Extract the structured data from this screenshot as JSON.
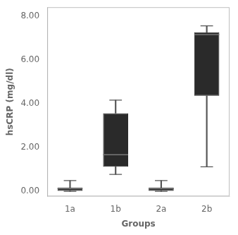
{
  "chart_data": {
    "type": "box",
    "categories": [
      "1a",
      "1b",
      "2a",
      "2b"
    ],
    "boxes": [
      {
        "whisker_low": -0.02,
        "q1": 0.0,
        "median": 0.1,
        "q3": 0.155,
        "whisker_high": 0.47
      },
      {
        "whisker_low": 0.75,
        "q1": 1.1,
        "median": 1.65,
        "q3": 3.55,
        "whisker_high": 4.15
      },
      {
        "whisker_low": -0.02,
        "q1": 0.0,
        "median": 0.1,
        "q3": 0.155,
        "whisker_high": 0.47
      },
      {
        "whisker_low": 1.1,
        "q1": 4.35,
        "median": 7.15,
        "q3": 7.25,
        "whisker_high": 7.55
      }
    ],
    "color": "#2a2a2a",
    "whisker_color": "#555555",
    "median_color": "#777777",
    "xlabel": "Groups",
    "ylabel": "hsCRP (mg/dl)",
    "ylim": [
      -0.25,
      8.4
    ],
    "yticks": [
      {
        "value": 0.0,
        "label": "0.00"
      },
      {
        "value": 2.0,
        "label": "2.00"
      },
      {
        "value": 4.0,
        "label": "4.00"
      },
      {
        "value": 6.0,
        "label": "6.00"
      },
      {
        "value": 8.0,
        "label": "8.00"
      }
    ],
    "grid": false
  }
}
